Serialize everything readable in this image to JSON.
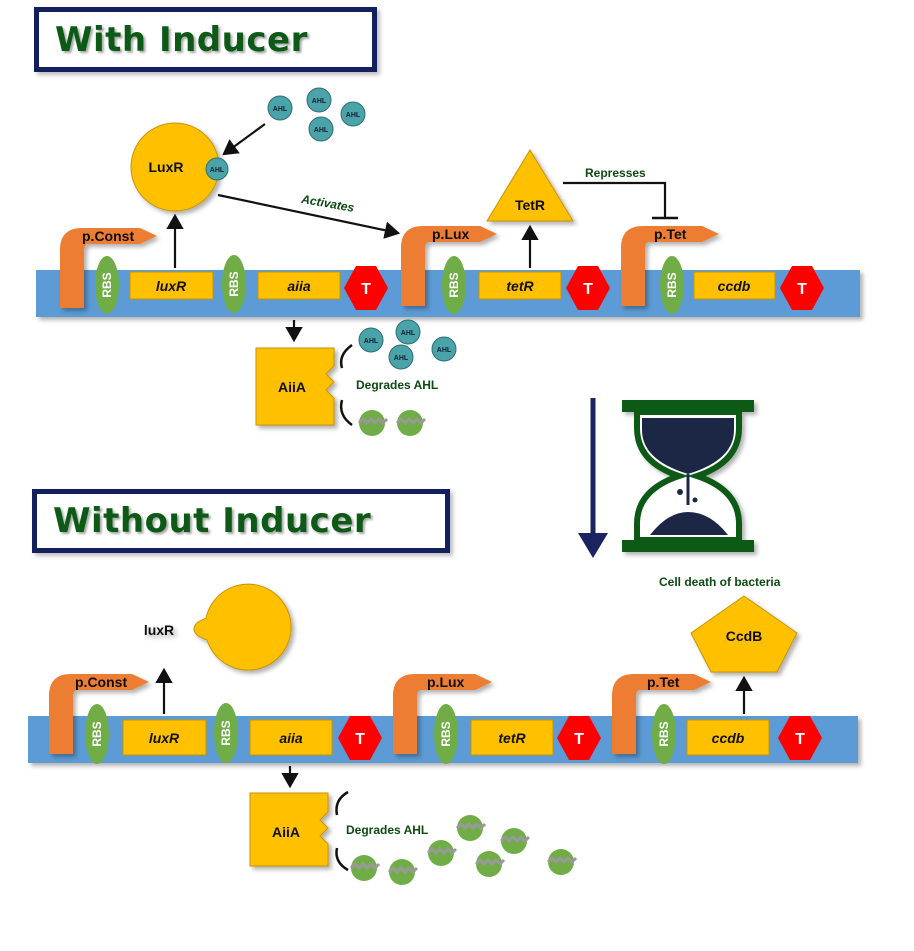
{
  "titles": {
    "with_inducer": "With Inducer",
    "without_inducer": "Without Inducer"
  },
  "promoters": {
    "const": "p.Const",
    "lux": "p.Lux",
    "tet": "p.Tet"
  },
  "rbs": "RBS",
  "terminator": "T",
  "genes": {
    "luxR": "luxR",
    "aiia": "aiia",
    "tetR": "tetR",
    "ccdb": "ccdb"
  },
  "proteins": {
    "luxR_with": "LuxR",
    "luxR_without": "luxR",
    "tetR": "TetR",
    "aiiA": "AiiA",
    "ccdB": "CcdB"
  },
  "ahl": "AHL",
  "annotations": {
    "activates": "Activates",
    "represses": "Represses",
    "degrades_ahl": "Degrades AHL",
    "cell_death": "Cell death of bacteria"
  },
  "colors": {
    "dna": "#5b9bd5",
    "promoter": "#ed7d31",
    "rbs": "#70ad47",
    "gene": "#ffc000",
    "terminator": "#ff0000",
    "ahl": "#4aa3a8",
    "degraded_ahl": "#70ad47",
    "title_border": "#14205e",
    "title_text": "#0c5a16"
  }
}
